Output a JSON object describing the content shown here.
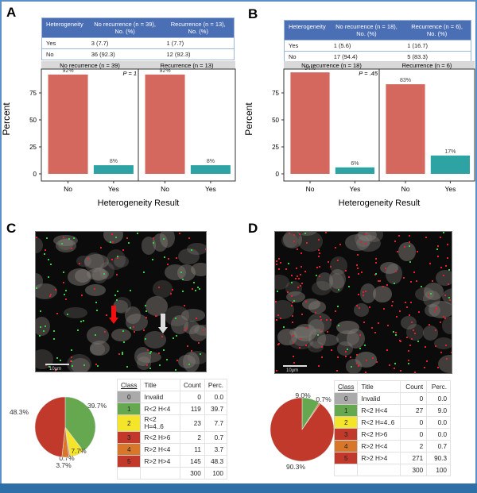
{
  "panels": {
    "a": "A",
    "b": "B",
    "c": "C",
    "d": "D"
  },
  "tables": {
    "a": {
      "headers": [
        "Heterogeneity",
        "No recurrence (n = 39), No. (%)",
        "Recurrence (n = 13), No. (%)"
      ],
      "rows": [
        [
          "Yes",
          "3 (7.7)",
          "1 (7.7)"
        ],
        [
          "No",
          "36 (92.3)",
          "12 (92.3)"
        ]
      ]
    },
    "b": {
      "headers": [
        "Heterogeneity",
        "No recurrence (n = 18), No. (%)",
        "Recurrence (n = 6), No. (%)"
      ],
      "rows": [
        [
          "Yes",
          "1 (5.6)",
          "1 (16.7)"
        ],
        [
          "No",
          "17 (94.4)",
          "5 (83.3)"
        ]
      ]
    }
  },
  "scale_bar": "10μm",
  "class_headers": [
    "Class",
    "Title",
    "Count",
    "Perc."
  ],
  "class_colors": [
    "#aaaaaa",
    "#66a84f",
    "#f5e52a",
    "#c0392b",
    "#d8762a",
    "#c0392b"
  ],
  "class_tables": {
    "c": {
      "rows": [
        [
          "0",
          "Invalid",
          "0",
          "0.0"
        ],
        [
          "1",
          "R<2 H<4",
          "119",
          "39.7"
        ],
        [
          "2",
          "R<2 H=4..6",
          "23",
          "7.7"
        ],
        [
          "3",
          "R<2 H>6",
          "2",
          "0.7"
        ],
        [
          "4",
          "R>2 H<4",
          "11",
          "3.7"
        ],
        [
          "5",
          "R>2 H>4",
          "145",
          "48.3"
        ]
      ],
      "total": [
        "300",
        "100"
      ]
    },
    "d": {
      "rows": [
        [
          "0",
          "Invalid",
          "0",
          "0.0"
        ],
        [
          "1",
          "R<2 H<4",
          "27",
          "9.0"
        ],
        [
          "2",
          "R<2 H=4..6",
          "0",
          "0.0"
        ],
        [
          "3",
          "R<2 H>6",
          "0",
          "0.0"
        ],
        [
          "4",
          "R>2 H<4",
          "2",
          "0.7"
        ],
        [
          "5",
          "R>2 H>4",
          "271",
          "90.3"
        ]
      ],
      "total": [
        "300",
        "100"
      ]
    }
  },
  "chart_data": [
    {
      "type": "bar",
      "panel": "A",
      "ylabel": "Percent",
      "xlabel": "Heterogeneity Result",
      "ylim": [
        0,
        100
      ],
      "yticks": [
        0,
        25,
        50,
        75
      ],
      "categories": [
        "No",
        "Yes"
      ],
      "colors": [
        "#d4685f",
        "#2ea3a3"
      ],
      "facets": [
        {
          "title": "No recurrence (n = 39)",
          "values": [
            92,
            8
          ],
          "labels": [
            "92%",
            "8%"
          ],
          "annotation": "P = 1"
        },
        {
          "title": "Recurrence (n = 13)",
          "values": [
            92,
            8
          ],
          "labels": [
            "92%",
            "8%"
          ]
        }
      ]
    },
    {
      "type": "bar",
      "panel": "B",
      "ylabel": "Percent",
      "xlabel": "Heterogeneity Result",
      "ylim": [
        0,
        100
      ],
      "yticks": [
        0,
        25,
        50,
        75
      ],
      "categories": [
        "No",
        "Yes"
      ],
      "colors": [
        "#d4685f",
        "#2ea3a3"
      ],
      "facets": [
        {
          "title": "No recurrence (n = 18)",
          "values": [
            94,
            6
          ],
          "labels": [
            "94%",
            "6%"
          ],
          "annotation": "P = .45"
        },
        {
          "title": "Recurrence (n = 6)",
          "values": [
            83,
            17
          ],
          "labels": [
            "83%",
            "17%"
          ]
        }
      ]
    },
    {
      "type": "pie",
      "panel": "C",
      "values": [
        39.7,
        7.7,
        0.7,
        3.7,
        48.3
      ],
      "labels": [
        "39.7%",
        "7.7%",
        "0.7%",
        "3.7%",
        "48.3%"
      ],
      "colors": [
        "#66a84f",
        "#f5e52a",
        "#d98b8b",
        "#d8762a",
        "#c0392b"
      ]
    },
    {
      "type": "pie",
      "panel": "D",
      "values": [
        9.0,
        0.7,
        90.3
      ],
      "labels": [
        "9.0%",
        "0.7%",
        "90.3%"
      ],
      "colors": [
        "#66a84f",
        "#d8762a",
        "#c0392b"
      ]
    }
  ]
}
